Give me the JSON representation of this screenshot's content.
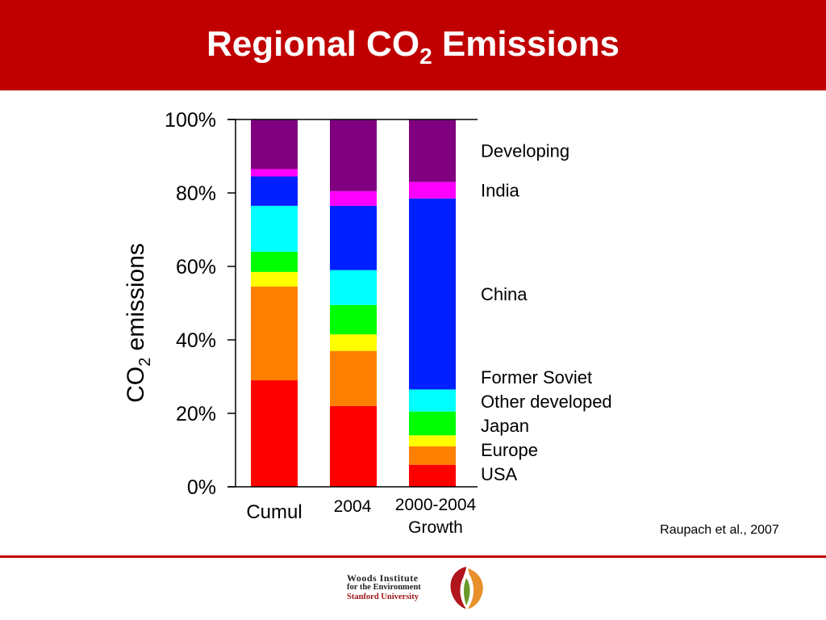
{
  "slide": {
    "title_main": "Regional CO",
    "title_sub": "2",
    "title_rest": " Emissions",
    "citation": "Raupach et al., 2007",
    "logo": {
      "line1": "Woods Institute",
      "line2": "for the Environment",
      "line3": "Stanford University"
    }
  },
  "chart_data": {
    "type": "bar",
    "stacked": true,
    "categories": [
      "Cumul",
      "2004",
      "2000-2004 Growth"
    ],
    "ylabel": "CO2 emissions",
    "ylabel_main": "CO",
    "ylabel_sub": "2",
    "ylabel_rest": " emissions",
    "ylim": [
      0,
      100
    ],
    "yticks": [
      "0%",
      "20%",
      "40%",
      "60%",
      "80%",
      "100%"
    ],
    "ytick_values": [
      0,
      20,
      40,
      60,
      80,
      100
    ],
    "grid": false,
    "legend": "right",
    "series": [
      {
        "name": "USA",
        "color": "#ff0000",
        "values": [
          29,
          22,
          6
        ]
      },
      {
        "name": "Europe",
        "color": "#ff8000",
        "values": [
          25.5,
          15,
          5
        ]
      },
      {
        "name": "Japan",
        "color": "#ffff00",
        "values": [
          4,
          4.5,
          3
        ]
      },
      {
        "name": "Former Soviet",
        "color": "#00ff00",
        "values": [
          5.5,
          8,
          6.5
        ]
      },
      {
        "name": "Other developed",
        "color": "#00ffff",
        "values": [
          12.5,
          9.5,
          6
        ]
      },
      {
        "name": "China",
        "color": "#0020ff",
        "values": [
          8,
          17.5,
          52
        ]
      },
      {
        "name": "India",
        "color": "#ff00ff",
        "values": [
          2,
          4,
          4.5
        ]
      },
      {
        "name": "Developing",
        "color": "#800080",
        "values": [
          13.5,
          19.5,
          17
        ]
      }
    ],
    "legend_order": [
      "Developing",
      "India",
      "China",
      "Former Soviet",
      "Other developed",
      "Japan",
      "Europe",
      "USA"
    ]
  }
}
